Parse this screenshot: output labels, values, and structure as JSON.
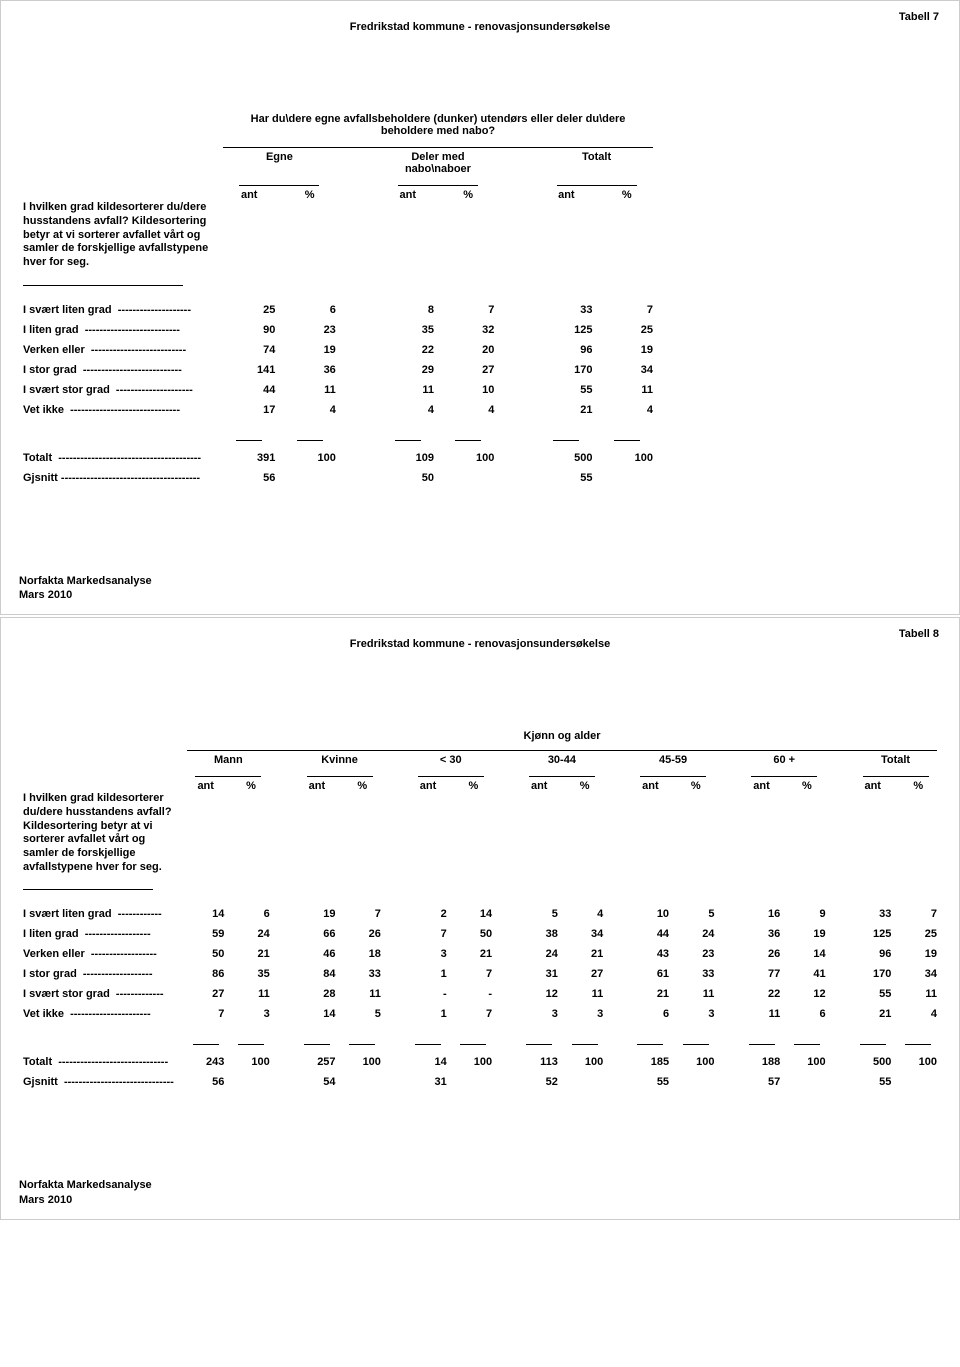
{
  "page7": {
    "tabel_label": "Tabell 7",
    "title": "Fredrikstad kommune - renovasjonsundersøkelse",
    "super_header": "Har du\\dere egne avfallsbeholdere (dunker) utendørs eller deler du\\dere beholdere med nabo?",
    "groups": [
      "Egne",
      "Deler med nabo\\naboer",
      "Totalt"
    ],
    "subcols": [
      "ant",
      "%"
    ],
    "question": "I hvilken grad kildesorterer du/dere husstandens avfall? Kildesortering betyr at vi sorterer avfallet vårt og samler de forskjellige avfallstypene hver for seg.",
    "rows": [
      {
        "label": "I svært liten grad",
        "vals": [
          "25",
          "6",
          "8",
          "7",
          "33",
          "7"
        ]
      },
      {
        "label": "I liten grad",
        "vals": [
          "90",
          "23",
          "35",
          "32",
          "125",
          "25"
        ]
      },
      {
        "label": "Verken eller",
        "vals": [
          "74",
          "19",
          "22",
          "20",
          "96",
          "19"
        ]
      },
      {
        "label": "I stor grad",
        "vals": [
          "141",
          "36",
          "29",
          "27",
          "170",
          "34"
        ]
      },
      {
        "label": "I svært stor grad",
        "vals": [
          "44",
          "11",
          "11",
          "10",
          "55",
          "11"
        ]
      },
      {
        "label": "Vet ikke",
        "vals": [
          "17",
          "4",
          "4",
          "4",
          "21",
          "4"
        ]
      }
    ],
    "total_label": "Totalt",
    "total_vals": [
      "391",
      "100",
      "109",
      "100",
      "500",
      "100"
    ],
    "avg_label": "Gjsnitt",
    "avg_vals": [
      "56",
      "",
      "50",
      "",
      "55",
      ""
    ],
    "footer1": "Norfakta Markedsanalyse",
    "footer2": "Mars 2010"
  },
  "page8": {
    "tabel_label": "Tabell 8",
    "title": "Fredrikstad kommune - renovasjonsundersøkelse",
    "super_header": "Kjønn og alder",
    "groups": [
      "Mann",
      "Kvinne",
      "< 30",
      "30-44",
      "45-59",
      "60 +",
      "Totalt"
    ],
    "subcols": [
      "ant",
      "%"
    ],
    "question": "I hvilken grad kildesorterer du/dere husstandens avfall? Kildesortering betyr at vi sorterer avfallet vårt og samler de forskjellige avfallstypene hver for seg.",
    "rows": [
      {
        "label": "I svært liten grad",
        "vals": [
          "14",
          "6",
          "19",
          "7",
          "2",
          "14",
          "5",
          "4",
          "10",
          "5",
          "16",
          "9",
          "33",
          "7"
        ]
      },
      {
        "label": "I liten grad",
        "vals": [
          "59",
          "24",
          "66",
          "26",
          "7",
          "50",
          "38",
          "34",
          "44",
          "24",
          "36",
          "19",
          "125",
          "25"
        ]
      },
      {
        "label": "Verken eller",
        "vals": [
          "50",
          "21",
          "46",
          "18",
          "3",
          "21",
          "24",
          "21",
          "43",
          "23",
          "26",
          "14",
          "96",
          "19"
        ]
      },
      {
        "label": "I stor grad",
        "vals": [
          "86",
          "35",
          "84",
          "33",
          "1",
          "7",
          "31",
          "27",
          "61",
          "33",
          "77",
          "41",
          "170",
          "34"
        ]
      },
      {
        "label": "I svært stor grad",
        "vals": [
          "27",
          "11",
          "28",
          "11",
          "-",
          "-",
          "12",
          "11",
          "21",
          "11",
          "22",
          "12",
          "55",
          "11"
        ]
      },
      {
        "label": "Vet ikke",
        "vals": [
          "7",
          "3",
          "14",
          "5",
          "1",
          "7",
          "3",
          "3",
          "6",
          "3",
          "11",
          "6",
          "21",
          "4"
        ]
      }
    ],
    "total_label": "Totalt",
    "total_vals": [
      "243",
      "100",
      "257",
      "100",
      "14",
      "100",
      "113",
      "100",
      "185",
      "100",
      "188",
      "100",
      "500",
      "100"
    ],
    "avg_label": "Gjsnitt",
    "avg_vals": [
      "56",
      "",
      "54",
      "",
      "31",
      "",
      "52",
      "",
      "55",
      "",
      "57",
      "",
      "55",
      ""
    ],
    "footer1": "Norfakta Markedsanalyse",
    "footer2": "Mars 2010"
  },
  "style": {
    "font_family": "Arial",
    "font_size_pt": 8,
    "text_color": "#000000",
    "border_color": "#cccccc",
    "background_color": "#ffffff"
  }
}
